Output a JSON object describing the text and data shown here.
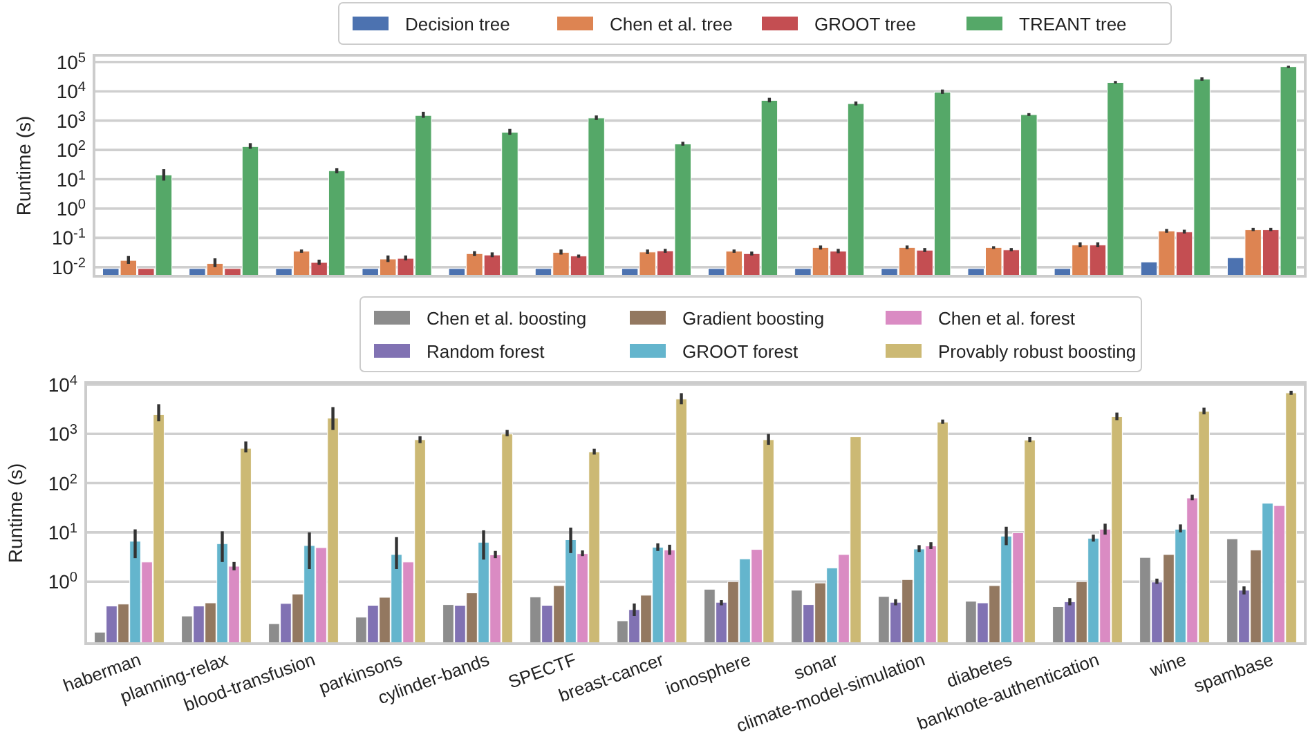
{
  "chart_data": [
    {
      "type": "bar",
      "ylabel": "Runtime (s)",
      "log": true,
      "grid": "y",
      "legend": "top",
      "tick_labels": "y",
      "categories": [
        null,
        null,
        null,
        null,
        null,
        null,
        null,
        null,
        null,
        null,
        null,
        null,
        null,
        null
      ],
      "ylim": [
        0.0049,
        170000
      ],
      "yticks": [
        {
          "value": 0.01,
          "label": "10$^{-2}$"
        },
        {
          "value": 0.1,
          "label": "10$^{-1}$"
        },
        {
          "value": 1,
          "label": "10$^{0}$"
        },
        {
          "value": 10,
          "label": "10$^{1}$"
        },
        {
          "value": 100,
          "label": "10$^{2}$"
        },
        {
          "value": 1000,
          "label": "10$^{3}$"
        },
        {
          "value": 10000,
          "label": "10$^{4}$"
        },
        {
          "value": 100000,
          "label": "10$^{5}$"
        }
      ],
      "series": [
        {
          "name": "Decision tree",
          "color": "#4c72b0",
          "values": [
            0.009,
            0.009,
            0.009,
            0.009,
            0.009,
            0.009,
            0.009,
            0.009,
            0.009,
            0.009,
            0.009,
            0.009,
            0.015,
            0.021
          ]
        },
        {
          "name": "Chen et al. tree",
          "color": "#dd8452",
          "values": [
            0.017,
            0.0134,
            0.035,
            0.019,
            0.029,
            0.032,
            0.033,
            0.035,
            0.047,
            0.047,
            0.047,
            0.057,
            0.17,
            0.19
          ],
          "errors": [
            [
              0.013,
              0.024
            ],
            [
              0.01,
              0.02
            ],
            [
              0.031,
              0.04
            ],
            [
              0.015,
              0.025
            ],
            [
              0.024,
              0.035
            ],
            [
              0.027,
              0.04
            ],
            [
              0.028,
              0.04
            ],
            [
              0.031,
              0.04
            ],
            [
              0.04,
              0.055
            ],
            [
              0.041,
              0.055
            ],
            [
              0.042,
              0.052
            ],
            [
              0.048,
              0.07
            ],
            [
              0.15,
              0.2
            ],
            [
              0.17,
              0.22
            ]
          ]
        },
        {
          "name": "GROOT tree",
          "color": "#c44e52",
          "values": [
            0.009,
            0.009,
            0.0145,
            0.02,
            0.026,
            0.024,
            0.036,
            0.029,
            0.035,
            0.038,
            0.039,
            0.057,
            0.16,
            0.19
          ],
          "errors": [
            null,
            null,
            [
              0.012,
              0.018
            ],
            [
              0.017,
              0.025
            ],
            [
              0.022,
              0.032
            ],
            [
              0.021,
              0.027
            ],
            [
              0.031,
              0.042
            ],
            [
              0.025,
              0.034
            ],
            [
              0.03,
              0.042
            ],
            [
              0.033,
              0.045
            ],
            [
              0.035,
              0.045
            ],
            [
              0.048,
              0.07
            ],
            [
              0.14,
              0.19
            ],
            [
              0.17,
              0.22
            ]
          ]
        },
        {
          "name": "TREANT tree",
          "color": "#55a868",
          "values": [
            14,
            130,
            19.5,
            1500,
            400,
            1230,
            160,
            4900,
            3800,
            9400,
            1600,
            20000,
            26000,
            69000
          ],
          "errors": [
            [
              9,
              22
            ],
            [
              110,
              170
            ],
            [
              16,
              24
            ],
            [
              1250,
              2000
            ],
            [
              330,
              520
            ],
            [
              1050,
              1500
            ],
            [
              140,
              190
            ],
            [
              4200,
              6000
            ],
            [
              3300,
              4500
            ],
            [
              8200,
              11500
            ],
            [
              1450,
              1800
            ],
            [
              18500,
              22500
            ],
            [
              23000,
              30000
            ],
            [
              63000,
              75000
            ]
          ]
        }
      ]
    },
    {
      "type": "bar",
      "ylabel": "Runtime (s)",
      "log": true,
      "grid": "y",
      "legend": "top",
      "categories": [
        "haberman",
        "planning-relax",
        "blood-transfusion",
        "parkinsons",
        "cylinder-bands",
        "SPECTF",
        "breast-cancer",
        "ionosphere",
        "sonar",
        "climate-model-simulation",
        "diabetes",
        "banknote-authentication",
        "wine",
        "spambase"
      ],
      "ylim": [
        0.055,
        11000
      ],
      "yticks": [
        {
          "value": 1,
          "label": "10$^{0}$"
        },
        {
          "value": 10,
          "label": "10$^{1}$"
        },
        {
          "value": 100,
          "label": "10$^{2}$"
        },
        {
          "value": 1000,
          "label": "10$^{3}$"
        },
        {
          "value": 10000,
          "label": "10$^{4}$"
        }
      ],
      "series": [
        {
          "name": "Chen et al. boosting",
          "color": "#8c8c8c",
          "values": [
            0.094,
            0.2,
            0.14,
            0.19,
            0.34,
            0.49,
            0.16,
            0.7,
            0.67,
            0.5,
            0.4,
            0.31,
            3.1,
            7.4
          ]
        },
        {
          "name": "Random forest",
          "color": "#8172b3",
          "values": [
            0.32,
            0.32,
            0.36,
            0.33,
            0.33,
            0.33,
            0.27,
            0.38,
            0.34,
            0.38,
            0.37,
            0.39,
            0.98,
            0.67
          ],
          "errors": [
            null,
            null,
            null,
            null,
            null,
            null,
            [
              0.2,
              0.36
            ],
            [
              0.33,
              0.42
            ],
            null,
            [
              0.33,
              0.44
            ],
            null,
            [
              0.33,
              0.46
            ],
            [
              0.9,
              1.15
            ],
            [
              0.55,
              0.8
            ]
          ]
        },
        {
          "name": "Gradient boosting",
          "color": "#937860",
          "values": [
            0.35,
            0.37,
            0.56,
            0.48,
            0.59,
            0.83,
            0.53,
            1.0,
            0.94,
            1.1,
            0.83,
            1.0,
            3.55,
            4.4
          ]
        },
        {
          "name": "GROOT forest",
          "color": "#64b5cd",
          "values": [
            6.6,
            5.9,
            5.4,
            3.55,
            6.3,
            7.1,
            5.0,
            2.9,
            1.9,
            4.6,
            8.4,
            7.6,
            11.6,
            39
          ],
          "errors": [
            [
              3,
              11.5
            ],
            [
              2.5,
              10.5
            ],
            [
              1.8,
              10
            ],
            [
              1.8,
              8
            ],
            [
              2.8,
              11
            ],
            [
              3.8,
              12.5
            ],
            [
              4.2,
              6
            ],
            null,
            null,
            [
              4,
              5.5
            ],
            [
              5.5,
              13
            ],
            [
              6.5,
              9
            ],
            [
              10,
              14.5
            ],
            null
          ]
        },
        {
          "name": "Chen et al. forest",
          "color": "#da8bc3",
          "values": [
            2.5,
            2.05,
            4.9,
            2.5,
            3.5,
            3.7,
            4.4,
            4.5,
            3.55,
            5.3,
            9.8,
            11.6,
            50,
            35
          ],
          "errors": [
            null,
            [
              1.7,
              2.5
            ],
            null,
            null,
            [
              3,
              4.2
            ],
            [
              3.3,
              4.3
            ],
            [
              3.5,
              5.6
            ],
            null,
            null,
            [
              4.6,
              6.3
            ],
            null,
            [
              9,
              15
            ],
            [
              45,
              58
            ],
            null
          ]
        },
        {
          "name": "Provably robust boosting",
          "color": "#ccb974",
          "values": [
            2460,
            510,
            2100,
            760,
            1000,
            430,
            5100,
            760,
            870,
            1740,
            750,
            2230,
            2870,
            6800
          ],
          "errors": [
            [
              1800,
              4000
            ],
            [
              420,
              700
            ],
            [
              1200,
              3500
            ],
            [
              650,
              900
            ],
            [
              900,
              1200
            ],
            [
              380,
              500
            ],
            [
              4000,
              6700
            ],
            [
              600,
              1000
            ],
            null,
            [
              1600,
              1950
            ],
            [
              680,
              860
            ],
            [
              1900,
              2700
            ],
            [
              2500,
              3400
            ],
            [
              6200,
              7500
            ]
          ]
        }
      ]
    }
  ]
}
